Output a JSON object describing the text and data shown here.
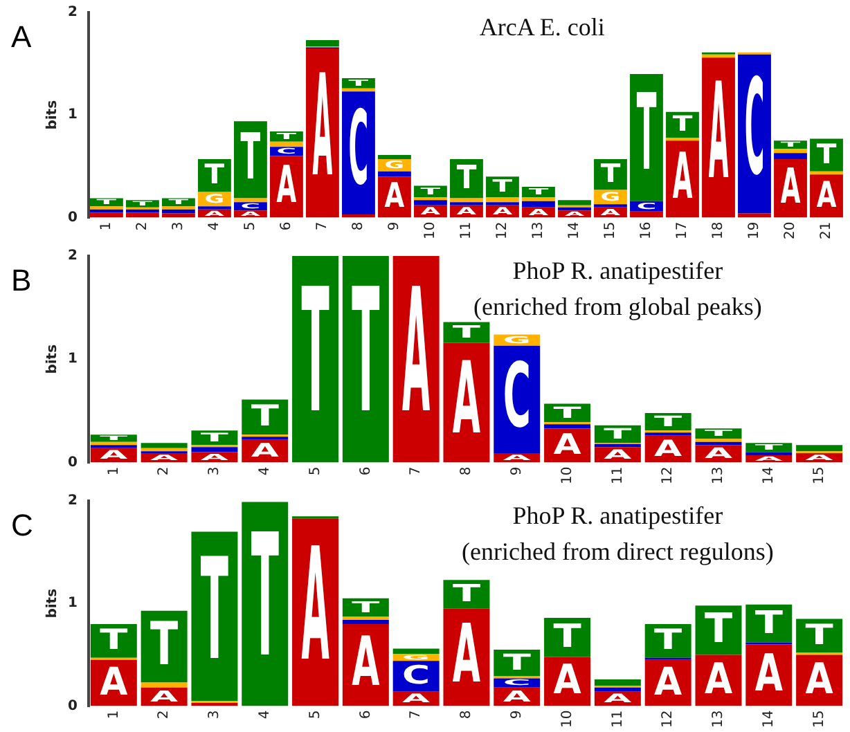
{
  "chart_data": [
    {
      "type": "bar",
      "title": "ArcA E. coli",
      "ylabel": "bits",
      "annotations": [
        "A"
      ],
      "stacked": true,
      "ylim": [
        0,
        2
      ],
      "yticks": [
        0,
        1,
        2
      ],
      "grid": false,
      "legend": false,
      "categories": [
        "1",
        "2",
        "3",
        "4",
        "5",
        "6",
        "7",
        "8",
        "9",
        "10",
        "11",
        "12",
        "13",
        "14",
        "15",
        "16",
        "17",
        "18",
        "19",
        "20",
        "21"
      ],
      "series": [
        {
          "name": "A",
          "color": "#cc0000",
          "values": [
            0.05,
            0.05,
            0.04,
            0.08,
            0.07,
            0.6,
            1.65,
            0.03,
            0.4,
            0.12,
            0.12,
            0.12,
            0.1,
            0.07,
            0.1,
            0.06,
            0.75,
            1.56,
            0.04,
            0.57,
            0.42
          ]
        },
        {
          "name": "C",
          "color": "#0000cc",
          "values": [
            0.03,
            0.03,
            0.04,
            0.03,
            0.08,
            0.09,
            0.01,
            1.2,
            0.05,
            0.05,
            0.03,
            0.03,
            0.06,
            0.03,
            0.03,
            0.1,
            0,
            0,
            1.55,
            0.06,
            0
          ]
        },
        {
          "name": "G",
          "color": "#ffb300",
          "values": [
            0.03,
            0.02,
            0.03,
            0.14,
            0.04,
            0.05,
            0.01,
            0.03,
            0.12,
            0.03,
            0.04,
            0.05,
            0.04,
            0.02,
            0.14,
            0,
            0.03,
            0.03,
            0.02,
            0.04,
            0.03
          ]
        },
        {
          "name": "T",
          "color": "#008000",
          "values": [
            0.08,
            0.07,
            0.08,
            0.32,
            0.75,
            0.1,
            0.06,
            0.1,
            0.04,
            0.11,
            0.38,
            0.2,
            0.1,
            0.05,
            0.3,
            1.24,
            0.25,
            0.02,
            0,
            0.08,
            0.32
          ]
        }
      ]
    },
    {
      "type": "bar",
      "title": "PhoP R. anatipestifer",
      "subtitle": "(enriched from global peaks)",
      "ylabel": "bits",
      "annotations": [
        "B"
      ],
      "stacked": true,
      "ylim": [
        0,
        2
      ],
      "yticks": [
        0,
        1,
        2
      ],
      "grid": false,
      "legend": false,
      "categories": [
        "1",
        "2",
        "3",
        "4",
        "5",
        "6",
        "7",
        "8",
        "9",
        "10",
        "11",
        "12",
        "13",
        "14",
        "15"
      ],
      "series": [
        {
          "name": "A",
          "color": "#cc0000",
          "values": [
            0.14,
            0.09,
            0.1,
            0.22,
            0,
            0,
            2,
            1.16,
            0.09,
            0.33,
            0.15,
            0.26,
            0.17,
            0.07,
            0.09
          ]
        },
        {
          "name": "C",
          "color": "#0000cc",
          "values": [
            0.03,
            0.02,
            0.05,
            0.03,
            0,
            0,
            0,
            0,
            1.04,
            0.04,
            0.03,
            0.03,
            0.03,
            0.03,
            0
          ]
        },
        {
          "name": "G",
          "color": "#ffb300",
          "values": [
            0.03,
            0.03,
            0.02,
            0.02,
            0,
            0,
            0,
            0,
            0.11,
            0.02,
            0.01,
            0.02,
            0.03,
            0,
            0.02
          ]
        },
        {
          "name": "T",
          "color": "#008000",
          "values": [
            0.07,
            0.05,
            0.14,
            0.34,
            2,
            2,
            0,
            0.2,
            0,
            0.18,
            0.17,
            0.17,
            0.1,
            0.09,
            0.06
          ]
        }
      ]
    },
    {
      "type": "bar",
      "title": "PhoP R. anatipestifer",
      "subtitle": "(enriched from direct regulons)",
      "ylabel": "bits",
      "annotations": [
        "C"
      ],
      "stacked": true,
      "ylim": [
        0,
        2
      ],
      "yticks": [
        0,
        1,
        2
      ],
      "grid": false,
      "legend": false,
      "categories": [
        "1",
        "2",
        "3",
        "4",
        "5",
        "6",
        "7",
        "8",
        "9",
        "10",
        "11",
        "12",
        "13",
        "14",
        "15"
      ],
      "series": [
        {
          "name": "A",
          "color": "#cc0000",
          "values": [
            0.45,
            0.18,
            0.03,
            0,
            1.83,
            0.8,
            0.14,
            0.95,
            0.18,
            0.48,
            0.14,
            0.45,
            0.5,
            0.6,
            0.5
          ]
        },
        {
          "name": "C",
          "color": "#0000cc",
          "values": [
            0,
            0,
            0,
            0,
            0,
            0.04,
            0.3,
            0,
            0.09,
            0,
            0.04,
            0.02,
            0,
            0.02,
            0
          ]
        },
        {
          "name": "G",
          "color": "#ffb300",
          "values": [
            0.02,
            0.05,
            0.02,
            0,
            0,
            0.03,
            0.07,
            0,
            0.02,
            0,
            0.02,
            0,
            0,
            0,
            0.02
          ]
        },
        {
          "name": "T",
          "color": "#008000",
          "values": [
            0.33,
            0.7,
            1.65,
            1.99,
            0.02,
            0.18,
            0.05,
            0.28,
            0.26,
            0.38,
            0.06,
            0.33,
            0.48,
            0.37,
            0.33
          ]
        }
      ]
    }
  ]
}
